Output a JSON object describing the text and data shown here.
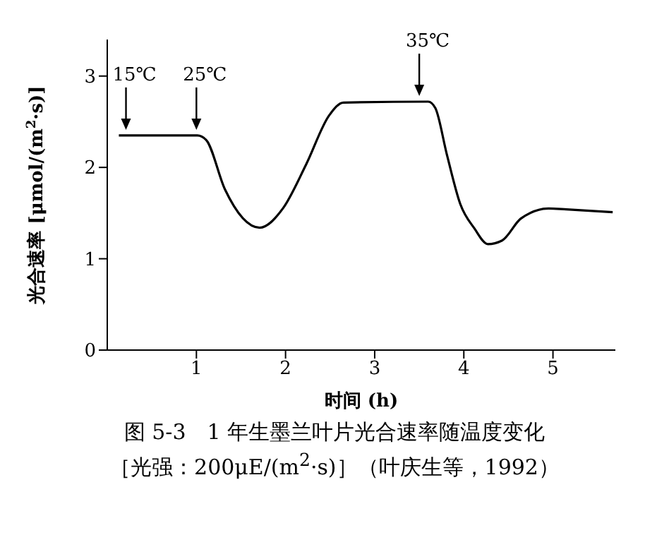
{
  "chart_data": {
    "type": "line",
    "xlabel": "时间 (h)",
    "ylabel": "光合速率 [μmol/(m$^{2}$·s)]",
    "title": "图 5-3　1 年生墨兰叶片光合速率随温度变化",
    "subtitle": "［光强：200μE/(m$^{2}$·s)］（叶庆生等，1992）",
    "xlim": [
      0,
      5.7
    ],
    "xticks": [
      1,
      2,
      3,
      4,
      5
    ],
    "ylim": [
      0,
      3.4
    ],
    "yticks": [
      0,
      1,
      2,
      3
    ],
    "marker": "none",
    "line_style": "solid",
    "series": [
      {
        "color": "#000000",
        "x": [
          0.13,
          1.01,
          1.11,
          1.32,
          1.71,
          1.97,
          2.23,
          2.49,
          2.65,
          3.6,
          3.68,
          3.81,
          3.96,
          4.12,
          4.27,
          4.43,
          4.64,
          4.95,
          5.15,
          5.67
        ],
        "values": [
          2.35,
          2.35,
          2.3,
          1.76,
          1.34,
          1.55,
          2.03,
          2.57,
          2.71,
          2.72,
          2.65,
          2.14,
          1.6,
          1.33,
          1.16,
          1.2,
          1.44,
          1.55,
          1.54,
          1.51
        ]
      }
    ],
    "annotations": [
      {
        "text": "15℃",
        "x": 0.21,
        "y": 2.35
      },
      {
        "text": "25℃",
        "x": 1.0,
        "y": 2.35
      },
      {
        "text": "35℃",
        "x": 3.5,
        "y": 2.72
      }
    ]
  }
}
